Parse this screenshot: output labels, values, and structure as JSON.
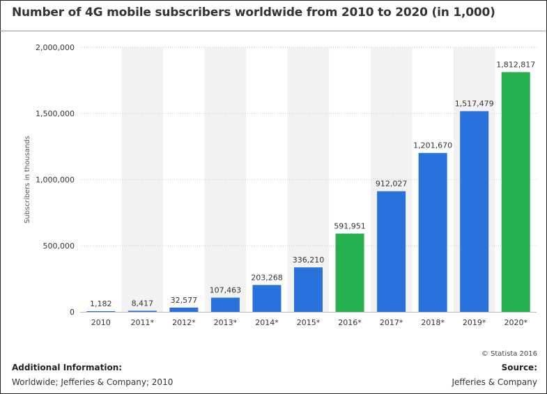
{
  "title": "Number of 4G mobile subscribers worldwide from 2010 to 2020 (in 1,000)",
  "copyright": "© Statista 2016",
  "additional_info": {
    "heading": "Additional Information:",
    "text": "Worldwide; Jefferies & Company; 2010"
  },
  "source": {
    "heading": "Source:",
    "text": "Jefferies & Company"
  },
  "colors": {
    "bar_default": "#2a72db",
    "bar_highlight": "#26b04f",
    "band": "#f2f2f2",
    "grid": "#c8c8c8",
    "text": "#333333"
  },
  "chart_data": {
    "type": "bar",
    "ylabel": "Subscribers in thousands",
    "xlabel": "",
    "ylim": [
      0,
      2000000
    ],
    "yticks": [
      0,
      500000,
      1000000,
      1500000,
      2000000
    ],
    "ytick_labels": [
      "0",
      "500,000",
      "1,000,000",
      "1,500,000",
      "2,000,000"
    ],
    "grid": true,
    "categories": [
      "2010",
      "2011*",
      "2012*",
      "2013*",
      "2014*",
      "2015*",
      "2016*",
      "2017*",
      "2018*",
      "2019*",
      "2020*"
    ],
    "values": [
      1182,
      8417,
      32577,
      107463,
      203268,
      336210,
      591951,
      912027,
      1201670,
      1517479,
      1812817
    ],
    "value_labels": [
      "1,182",
      "8,417",
      "32,577",
      "107,463",
      "203,268",
      "336,210",
      "591,951",
      "912,027",
      "1,201,670",
      "1,517,479",
      "1,812,817"
    ],
    "highlighted": [
      "2016*",
      "2020*"
    ]
  }
}
